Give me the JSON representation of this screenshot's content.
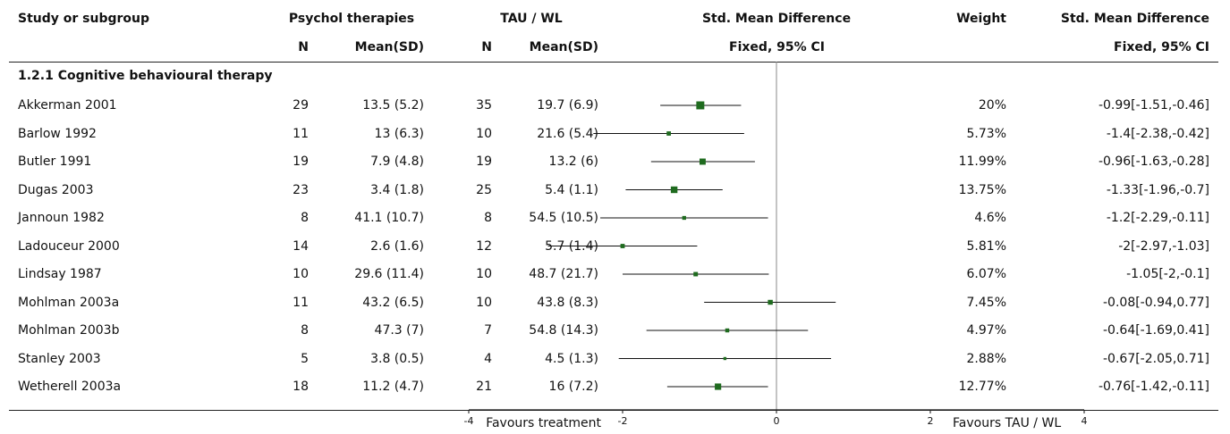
{
  "headers": {
    "study": "Study or subgroup",
    "group1": "Psychol therapies",
    "group2": "TAU / WL",
    "effect": "Std. Mean Difference",
    "effect_sub": "Fixed, 95% CI",
    "weight": "Weight",
    "ci": "Std. Mean Difference",
    "ci_sub": "Fixed, 95% CI",
    "n": "N",
    "mean_sd": "Mean(SD)"
  },
  "subgroup_title": "1.2.1 Cognitive behavioural therapy",
  "footer": {
    "favours_left": "Favours treatment",
    "favours_right": "Favours TAU / WL"
  },
  "colors": {
    "marker": "#1f6b1f",
    "line": "#111111"
  },
  "chart_data": {
    "type": "forest",
    "xlim": [
      -4,
      4
    ],
    "xticks": [
      "-4",
      "-2",
      "0",
      "2",
      "4"
    ],
    "studies": [
      {
        "name": "Akkerman 2001",
        "n1": "29",
        "ms1": "13.5 (5.2)",
        "n2": "35",
        "ms2": "19.7 (6.9)",
        "weight": "20%",
        "ci": "-0.99[-1.51,-0.46]",
        "est": -0.99,
        "lo": -1.51,
        "hi": -0.46,
        "w": 20
      },
      {
        "name": "Barlow 1992",
        "n1": "11",
        "ms1": "13 (6.3)",
        "n2": "10",
        "ms2": "21.6 (5.4)",
        "weight": "5.73%",
        "ci": "-1.4[-2.38,-0.42]",
        "est": -1.4,
        "lo": -2.38,
        "hi": -0.42,
        "w": 5.73
      },
      {
        "name": "Butler 1991",
        "n1": "19",
        "ms1": "7.9 (4.8)",
        "n2": "19",
        "ms2": "13.2 (6)",
        "weight": "11.99%",
        "ci": "-0.96[-1.63,-0.28]",
        "est": -0.96,
        "lo": -1.63,
        "hi": -0.28,
        "w": 11.99
      },
      {
        "name": "Dugas 2003",
        "n1": "23",
        "ms1": "3.4 (1.8)",
        "n2": "25",
        "ms2": "5.4 (1.1)",
        "weight": "13.75%",
        "ci": "-1.33[-1.96,-0.7]",
        "est": -1.33,
        "lo": -1.96,
        "hi": -0.7,
        "w": 13.75
      },
      {
        "name": "Jannoun 1982",
        "n1": "8",
        "ms1": "41.1 (10.7)",
        "n2": "8",
        "ms2": "54.5 (10.5)",
        "weight": "4.6%",
        "ci": "-1.2[-2.29,-0.11]",
        "est": -1.2,
        "lo": -2.29,
        "hi": -0.11,
        "w": 4.6
      },
      {
        "name": "Ladouceur 2000",
        "n1": "14",
        "ms1": "2.6 (1.6)",
        "n2": "12",
        "ms2": "5.7 (1.4)",
        "weight": "5.81%",
        "ci": "-2[-2.97,-1.03]",
        "est": -2,
        "lo": -2.97,
        "hi": -1.03,
        "w": 5.81
      },
      {
        "name": "Lindsay 1987",
        "n1": "10",
        "ms1": "29.6 (11.4)",
        "n2": "10",
        "ms2": "48.7 (21.7)",
        "weight": "6.07%",
        "ci": "-1.05[-2,-0.1]",
        "est": -1.05,
        "lo": -2,
        "hi": -0.1,
        "w": 6.07
      },
      {
        "name": "Mohlman 2003a",
        "n1": "11",
        "ms1": "43.2 (6.5)",
        "n2": "10",
        "ms2": "43.8 (8.3)",
        "weight": "7.45%",
        "ci": "-0.08[-0.94,0.77]",
        "est": -0.08,
        "lo": -0.94,
        "hi": 0.77,
        "w": 7.45
      },
      {
        "name": "Mohlman 2003b",
        "n1": "8",
        "ms1": "47.3 (7)",
        "n2": "7",
        "ms2": "54.8 (14.3)",
        "weight": "4.97%",
        "ci": "-0.64[-1.69,0.41]",
        "est": -0.64,
        "lo": -1.69,
        "hi": 0.41,
        "w": 4.97
      },
      {
        "name": "Stanley 2003",
        "n1": "5",
        "ms1": "3.8 (0.5)",
        "n2": "4",
        "ms2": "4.5 (1.3)",
        "weight": "2.88%",
        "ci": "-0.67[-2.05,0.71]",
        "est": -0.67,
        "lo": -2.05,
        "hi": 0.71,
        "w": 2.88
      },
      {
        "name": "Wetherell 2003a",
        "n1": "18",
        "ms1": "11.2 (4.7)",
        "n2": "21",
        "ms2": "16 (7.2)",
        "weight": "12.77%",
        "ci": "-0.76[-1.42,-0.11]",
        "est": -0.76,
        "lo": -1.42,
        "hi": -0.11,
        "w": 12.77
      }
    ]
  }
}
